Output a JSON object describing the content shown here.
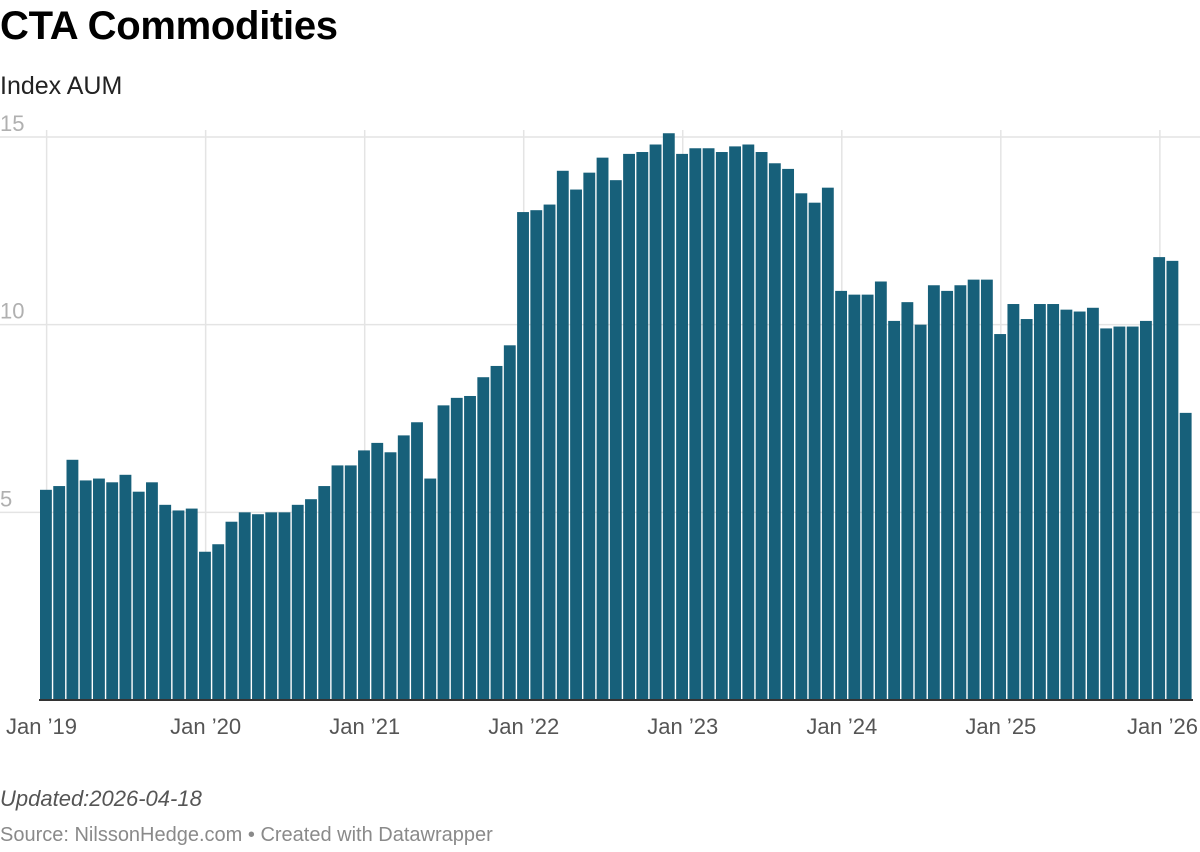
{
  "title": "CTA Commodities",
  "subtitle": "Index AUM",
  "notes": "Updated:2026-04-18",
  "source": "Source: NilssonHedge.com • Created with Datawrapper",
  "colors": {
    "bar": "#17607a",
    "grid": "#e4e4e4",
    "axis": "#333333",
    "tick_text": "#b0b0b0",
    "xtick_text": "#555555"
  },
  "chart_data": {
    "type": "bar",
    "title": "CTA Commodities",
    "subtitle": "Index AUM",
    "xlabel": "",
    "ylabel": "",
    "ylim": [
      0,
      15
    ],
    "y_ticks": [
      5,
      10,
      15
    ],
    "x_ticks": [
      {
        "label": "Jan ’19",
        "index": 0
      },
      {
        "label": "Jan ’20",
        "index": 12
      },
      {
        "label": "Jan ’21",
        "index": 24
      },
      {
        "label": "Jan ’22",
        "index": 36
      },
      {
        "label": "Jan ’23",
        "index": 48
      },
      {
        "label": "Jan ’24",
        "index": 60
      },
      {
        "label": "Jan ’25",
        "index": 72
      },
      {
        "label": "Jan ’26",
        "index": 84
      }
    ],
    "start": "Jan 2019",
    "frequency": "monthly",
    "grid": true,
    "values": [
      5.6,
      5.7,
      6.4,
      5.85,
      5.9,
      5.8,
      6.0,
      5.55,
      5.8,
      5.2,
      5.05,
      5.1,
      3.95,
      4.15,
      4.75,
      5.0,
      4.95,
      5.0,
      5.0,
      5.2,
      5.35,
      5.7,
      6.25,
      6.25,
      6.65,
      6.85,
      6.6,
      7.05,
      7.4,
      5.9,
      7.85,
      8.05,
      8.1,
      8.6,
      8.9,
      9.45,
      13.0,
      13.05,
      13.2,
      14.1,
      13.6,
      14.05,
      14.45,
      13.85,
      14.55,
      14.6,
      14.8,
      15.1,
      14.55,
      14.7,
      14.7,
      14.6,
      14.75,
      14.8,
      14.6,
      14.3,
      14.15,
      13.5,
      13.25,
      13.65,
      10.9,
      10.8,
      10.8,
      11.15,
      10.1,
      10.6,
      10.0,
      11.05,
      10.9,
      11.05,
      11.2,
      11.2,
      9.75,
      10.55,
      10.15,
      10.55,
      10.55,
      10.4,
      10.35,
      10.45,
      9.9,
      9.95,
      9.95,
      10.1,
      11.8,
      11.7,
      7.65
    ]
  }
}
